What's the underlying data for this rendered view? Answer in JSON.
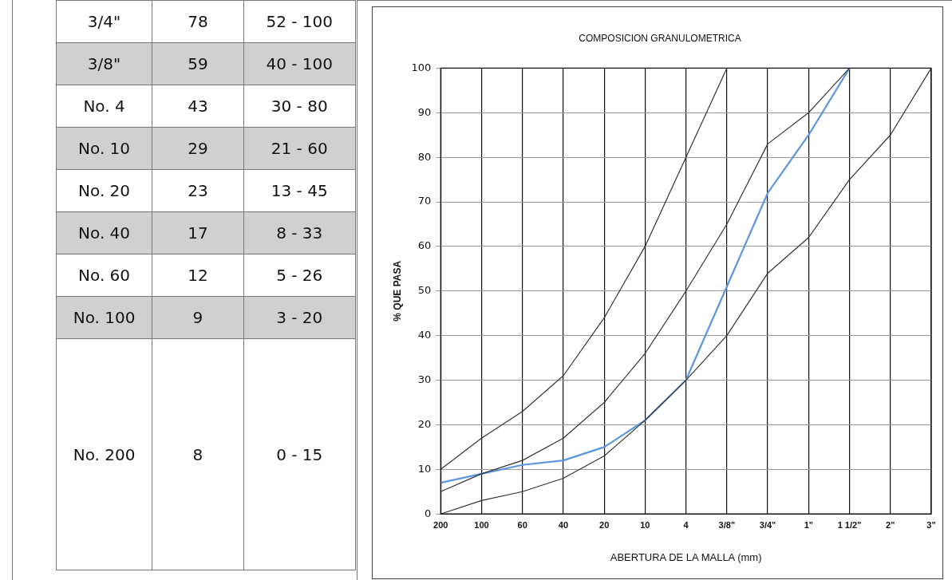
{
  "chart_data": [
    {
      "type": "other",
      "annotations": [
        "3/4\"",
        "78",
        "52 - 100",
        "3/8\"",
        "59",
        "40 - 100",
        "No. 4",
        "43",
        "30 - 80",
        "No. 10",
        "29",
        "21 - 60",
        "No. 20",
        "23",
        "13 - 45",
        "No. 40",
        "17",
        "8 - 33",
        "No. 60",
        "12",
        "5 - 26",
        "No. 100",
        "9",
        "3 - 20",
        "No. 200",
        "8",
        "0 - 15"
      ]
    },
    {
      "type": "line",
      "title": "COMPOSICION GRANULOMETRICA",
      "xlabel": "ABERTURA DE LA MALLA (mm)",
      "ylabel": "% QUE PASA",
      "grid": true,
      "legend": false,
      "marker": "none",
      "line_style": "solid",
      "categories": [
        "200",
        "100",
        "60",
        "40",
        "20",
        "10",
        "4",
        "3/8\"",
        "3/4\"",
        "1\"",
        "1 1/2\"",
        "2\"",
        "3\""
      ],
      "ylim": [
        0,
        100
      ],
      "yticks": [
        0,
        10,
        20,
        30,
        40,
        50,
        60,
        70,
        80,
        90,
        100
      ],
      "series": [
        {
          "color": "#333333",
          "values": [
            10,
            17,
            23,
            31,
            44,
            60,
            80,
            100,
            null,
            null,
            null,
            null,
            null
          ]
        },
        {
          "color": "#333333",
          "values": [
            5,
            9,
            12,
            17,
            25,
            36,
            50,
            65,
            83,
            90,
            100,
            null,
            null
          ]
        },
        {
          "color": "#333333",
          "values": [
            0,
            3,
            5,
            8,
            13,
            21,
            30,
            40,
            54,
            62,
            75,
            85,
            100
          ]
        },
        {
          "color": "#5b96e0",
          "values": [
            7,
            9,
            11,
            12,
            15,
            21,
            30,
            51,
            72,
            85,
            100,
            null,
            null
          ]
        }
      ]
    }
  ]
}
